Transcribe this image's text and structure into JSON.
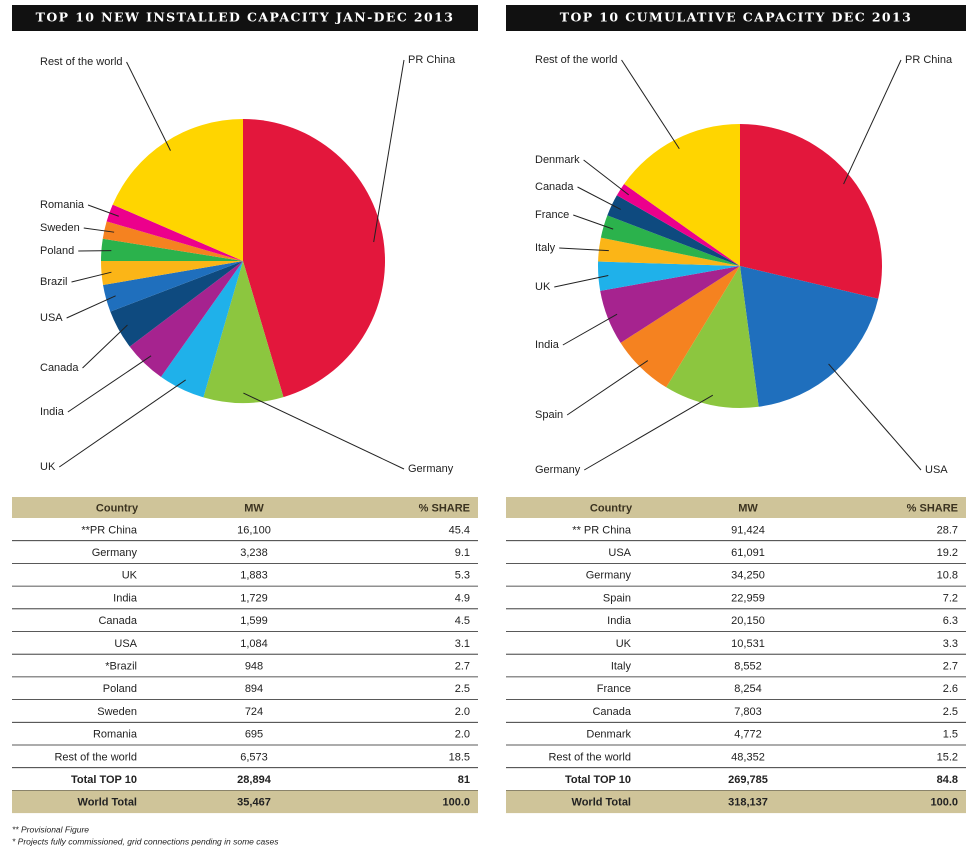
{
  "chart_data": [
    {
      "type": "pie",
      "title": "TOP 10 NEW INSTALLED CAPACITY JAN-DEC 2013",
      "categories": [
        "PR China",
        "Germany",
        "UK",
        "India",
        "Canada",
        "USA",
        "Brazil",
        "Poland",
        "Sweden",
        "Romania",
        "Rest of the world"
      ],
      "values": [
        45.4,
        9.1,
        5.3,
        4.9,
        4.5,
        3.1,
        2.7,
        2.5,
        2.0,
        2.0,
        18.5
      ],
      "colors": [
        "#e3173c",
        "#8cc63f",
        "#1fb1ea",
        "#a6238f",
        "#0e4a7f",
        "#1f6fbd",
        "#fbb517",
        "#2bb24c",
        "#f58220",
        "#ec008c",
        "#ffd500"
      ]
    },
    {
      "type": "pie",
      "title": "TOP 10 CUMULATIVE CAPACITY DEC 2013",
      "categories": [
        "PR China",
        "USA",
        "Germany",
        "Spain",
        "India",
        "UK",
        "Italy",
        "France",
        "Canada",
        "Denmark",
        "Rest of the world"
      ],
      "values": [
        28.7,
        19.2,
        10.8,
        7.2,
        6.3,
        3.3,
        2.7,
        2.6,
        2.5,
        1.5,
        15.2
      ],
      "colors": [
        "#e3173c",
        "#1f6fbd",
        "#8cc63f",
        "#f58220",
        "#a6238f",
        "#1fb1ea",
        "#fbb517",
        "#2bb24c",
        "#0e4a7f",
        "#ec008c",
        "#ffd500"
      ]
    }
  ],
  "tables": [
    {
      "columns": [
        "Country",
        "MW",
        "% SHARE"
      ],
      "rows": [
        [
          "**PR China",
          "16,100",
          "45.4"
        ],
        [
          "Germany",
          "3,238",
          "9.1"
        ],
        [
          "UK",
          "1,883",
          "5.3"
        ],
        [
          "India",
          "1,729",
          "4.9"
        ],
        [
          "Canada",
          "1,599",
          "4.5"
        ],
        [
          "USA",
          "1,084",
          "3.1"
        ],
        [
          "*Brazil",
          "948",
          "2.7"
        ],
        [
          "Poland",
          "894",
          "2.5"
        ],
        [
          "Sweden",
          "724",
          "2.0"
        ],
        [
          "Romania",
          "695",
          "2.0"
        ],
        [
          "Rest of the world",
          "6,573",
          "18.5"
        ],
        [
          "Total TOP 10",
          "28,894",
          "81"
        ],
        [
          "World Total",
          "35,467",
          "100.0"
        ]
      ]
    },
    {
      "columns": [
        "Country",
        "MW",
        "% SHARE"
      ],
      "rows": [
        [
          "** PR China",
          "91,424",
          "28.7"
        ],
        [
          "USA",
          "61,091",
          "19.2"
        ],
        [
          "Germany",
          "34,250",
          "10.8"
        ],
        [
          "Spain",
          "22,959",
          "7.2"
        ],
        [
          "India",
          "20,150",
          "6.3"
        ],
        [
          "UK",
          "10,531",
          "3.3"
        ],
        [
          "Italy",
          "8,552",
          "2.7"
        ],
        [
          "France",
          "8,254",
          "2.6"
        ],
        [
          "Canada",
          "7,803",
          "2.5"
        ],
        [
          "Denmark",
          "4,772",
          "1.5"
        ],
        [
          "Rest of the world",
          "48,352",
          "15.2"
        ],
        [
          "Total TOP 10",
          "269,785",
          "84.8"
        ],
        [
          "World Total",
          "318,137",
          "100.0"
        ]
      ]
    }
  ],
  "footnotes": [
    "** Provisional Figure",
    "*  Projects fully commissioned, grid connections pending in some cases"
  ]
}
